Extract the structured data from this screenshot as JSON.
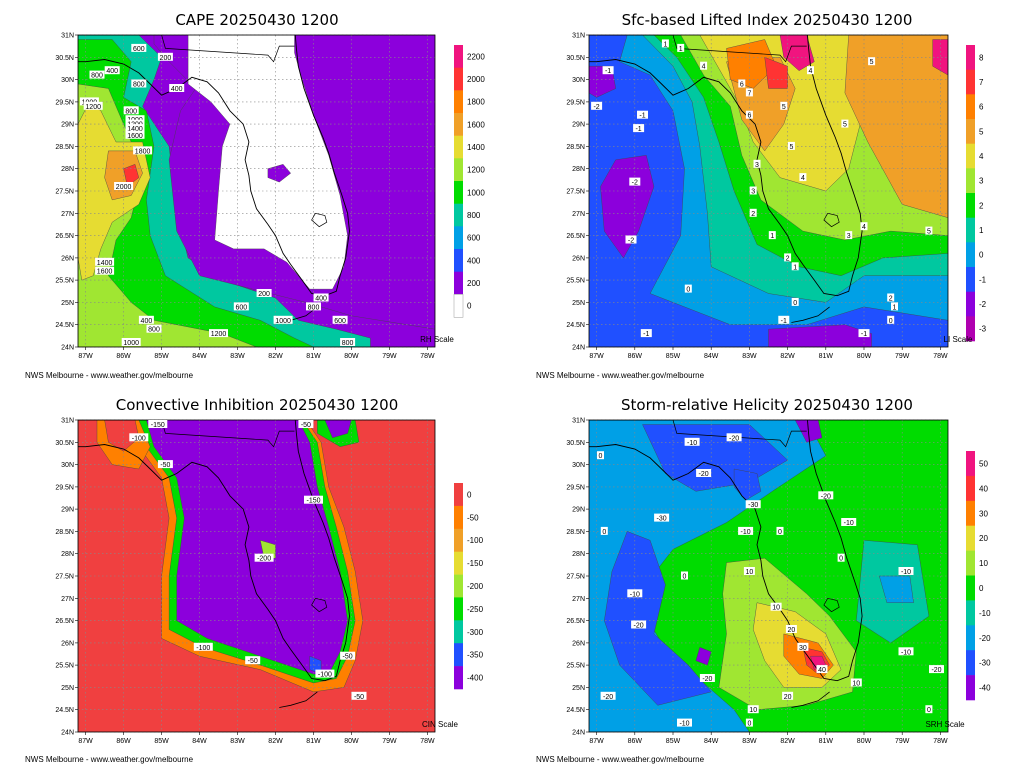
{
  "credit": "NWS Melbourne - www.weather.gov/melbourne",
  "chart_data": [
    {
      "type": "heatmap",
      "title": "CAPE 20250430 1200",
      "scale_label": "RH Scale",
      "x_ticks": [
        "87W",
        "86W",
        "85W",
        "84W",
        "83W",
        "82W",
        "81W",
        "80W",
        "79W",
        "78W"
      ],
      "y_ticks": [
        "31N",
        "30.5N",
        "30N",
        "29.5N",
        "29N",
        "28.5N",
        "28N",
        "27.5N",
        "27N",
        "26.5N",
        "26N",
        "25.5N",
        "25N",
        "24.5N",
        "24N"
      ],
      "xlim": [
        -87.2,
        -77.8
      ],
      "ylim": [
        24,
        31
      ],
      "colorbar": {
        "levels": [
          "2200",
          "2000",
          "1800",
          "1600",
          "1400",
          "1200",
          "1000",
          "800",
          "600",
          "400",
          "200",
          "0"
        ],
        "colors": [
          "#f0147f",
          "#ff3333",
          "#ff8000",
          "#f0a028",
          "#e6dc32",
          "#a0e632",
          "#00dc00",
          "#00c8a0",
          "#00a0e6",
          "#2050ff",
          "#8c00dc",
          "#ffffff"
        ]
      },
      "contour_labels": [
        {
          "text": "600",
          "lon": -85.6,
          "lat": 30.7
        },
        {
          "text": "400",
          "lon": -86.3,
          "lat": 30.2
        },
        {
          "text": "200",
          "lon": -84.9,
          "lat": 30.5
        },
        {
          "text": "800",
          "lon": -86.7,
          "lat": 30.1
        },
        {
          "text": "800",
          "lon": -85.6,
          "lat": 29.9
        },
        {
          "text": "400",
          "lon": -84.6,
          "lat": 29.8
        },
        {
          "text": "1000",
          "lon": -86.9,
          "lat": 29.5
        },
        {
          "text": "1200",
          "lon": -86.8,
          "lat": 29.4
        },
        {
          "text": "800",
          "lon": -85.8,
          "lat": 29.3
        },
        {
          "text": "1000",
          "lon": -85.7,
          "lat": 29.1
        },
        {
          "text": "1200",
          "lon": -85.7,
          "lat": 29.0
        },
        {
          "text": "1400",
          "lon": -85.7,
          "lat": 28.9
        },
        {
          "text": "1600",
          "lon": -85.7,
          "lat": 28.75
        },
        {
          "text": "1800",
          "lon": -85.5,
          "lat": 28.4
        },
        {
          "text": "2000",
          "lon": -86.0,
          "lat": 27.6
        },
        {
          "text": "1400",
          "lon": -86.5,
          "lat": 25.9
        },
        {
          "text": "1600",
          "lon": -86.5,
          "lat": 25.7
        },
        {
          "text": "200",
          "lon": -82.3,
          "lat": 25.2
        },
        {
          "text": "600",
          "lon": -82.9,
          "lat": 24.9
        },
        {
          "text": "400",
          "lon": -85.4,
          "lat": 24.6
        },
        {
          "text": "800",
          "lon": -85.2,
          "lat": 24.4
        },
        {
          "text": "1200",
          "lon": -83.5,
          "lat": 24.3
        },
        {
          "text": "1000",
          "lon": -81.8,
          "lat": 24.6
        },
        {
          "text": "1000",
          "lon": -85.8,
          "lat": 24.1
        },
        {
          "text": "800",
          "lon": -81.0,
          "lat": 24.9
        },
        {
          "text": "600",
          "lon": -80.3,
          "lat": 24.6
        },
        {
          "text": "400",
          "lon": -80.8,
          "lat": 25.1
        },
        {
          "text": "800",
          "lon": -80.1,
          "lat": 24.1
        }
      ]
    },
    {
      "type": "heatmap",
      "title": "Sfc-based Lifted Index 20250430 1200",
      "scale_label": "LI Scale",
      "x_ticks": [
        "87W",
        "86W",
        "85W",
        "84W",
        "83W",
        "82W",
        "81W",
        "80W",
        "79W",
        "78W"
      ],
      "y_ticks": [
        "31N",
        "30.5N",
        "30N",
        "29.5N",
        "29N",
        "28.5N",
        "28N",
        "27.5N",
        "27N",
        "26.5N",
        "26N",
        "25.5N",
        "25N",
        "24.5N",
        "24N"
      ],
      "xlim": [
        -87.2,
        -77.8
      ],
      "ylim": [
        24,
        31
      ],
      "colorbar": {
        "levels": [
          "8",
          "7",
          "6",
          "5",
          "4",
          "3",
          "2",
          "1",
          "0",
          "-1",
          "-2",
          "-3"
        ],
        "colors": [
          "#f0147f",
          "#ff3333",
          "#ff8000",
          "#f0a028",
          "#e6dc32",
          "#a0e632",
          "#00dc00",
          "#00c8a0",
          "#00a0e6",
          "#2050ff",
          "#8c00dc",
          "#b000b0"
        ]
      },
      "contour_labels": [
        {
          "text": "-1",
          "lon": -86.7,
          "lat": 30.2
        },
        {
          "text": "-2",
          "lon": -87.0,
          "lat": 29.4
        },
        {
          "text": "-1",
          "lon": -85.8,
          "lat": 29.2
        },
        {
          "text": "-1",
          "lon": -85.9,
          "lat": 28.9
        },
        {
          "text": "-2",
          "lon": -86.0,
          "lat": 27.7
        },
        {
          "text": "-2",
          "lon": -86.1,
          "lat": 26.4
        },
        {
          "text": "0",
          "lon": -84.6,
          "lat": 25.3
        },
        {
          "text": "-1",
          "lon": -85.7,
          "lat": 24.3
        },
        {
          "text": "1",
          "lon": -85.2,
          "lat": 30.8
        },
        {
          "text": "1",
          "lon": -84.8,
          "lat": 30.7
        },
        {
          "text": "4",
          "lon": -84.2,
          "lat": 30.3
        },
        {
          "text": "6",
          "lon": -83.2,
          "lat": 29.9
        },
        {
          "text": "7",
          "lon": -83.0,
          "lat": 29.7
        },
        {
          "text": "6",
          "lon": -83.0,
          "lat": 29.2
        },
        {
          "text": "5",
          "lon": -82.1,
          "lat": 29.4
        },
        {
          "text": "5",
          "lon": -79.8,
          "lat": 30.4
        },
        {
          "text": "5",
          "lon": -80.5,
          "lat": 29.0
        },
        {
          "text": "4",
          "lon": -81.4,
          "lat": 30.2
        },
        {
          "text": "5",
          "lon": -81.9,
          "lat": 28.5
        },
        {
          "text": "3",
          "lon": -82.8,
          "lat": 28.1
        },
        {
          "text": "4",
          "lon": -81.6,
          "lat": 27.8
        },
        {
          "text": "3",
          "lon": -82.9,
          "lat": 27.5
        },
        {
          "text": "2",
          "lon": -82.9,
          "lat": 27.0
        },
        {
          "text": "1",
          "lon": -82.4,
          "lat": 26.5
        },
        {
          "text": "2",
          "lon": -82.0,
          "lat": 26.0
        },
        {
          "text": "1",
          "lon": -81.8,
          "lat": 25.8
        },
        {
          "text": "0",
          "lon": -81.8,
          "lat": 25.0
        },
        {
          "text": "-1",
          "lon": -82.1,
          "lat": 24.6
        },
        {
          "text": "4",
          "lon": -80.0,
          "lat": 26.7
        },
        {
          "text": "3",
          "lon": -80.4,
          "lat": 26.5
        },
        {
          "text": "2",
          "lon": -79.3,
          "lat": 25.1
        },
        {
          "text": "1",
          "lon": -79.2,
          "lat": 24.9
        },
        {
          "text": "0",
          "lon": -79.3,
          "lat": 24.6
        },
        {
          "text": "-1",
          "lon": -80.0,
          "lat": 24.3
        },
        {
          "text": "5",
          "lon": -78.3,
          "lat": 26.6
        }
      ]
    },
    {
      "type": "heatmap",
      "title": "Convective Inhibition 20250430 1200",
      "scale_label": "CIN Scale",
      "x_ticks": [
        "87W",
        "86W",
        "85W",
        "84W",
        "83W",
        "82W",
        "81W",
        "80W",
        "79W",
        "78W"
      ],
      "y_ticks": [
        "31N",
        "30.5N",
        "30N",
        "29.5N",
        "29N",
        "28.5N",
        "28N",
        "27.5N",
        "27N",
        "26.5N",
        "26N",
        "25.5N",
        "25N",
        "24.5N",
        "24N"
      ],
      "xlim": [
        -87.2,
        -77.8
      ],
      "ylim": [
        24,
        31
      ],
      "colorbar": {
        "levels": [
          "0",
          "-50",
          "-100",
          "-150",
          "-200",
          "-250",
          "-300",
          "-350",
          "-400"
        ],
        "colors": [
          "#f04040",
          "#ff8000",
          "#f0a028",
          "#e6dc32",
          "#a0e632",
          "#00dc00",
          "#00c8a0",
          "#2050ff",
          "#8c00dc"
        ]
      },
      "contour_labels": [
        {
          "text": "-150",
          "lon": -85.1,
          "lat": 30.9
        },
        {
          "text": "-100",
          "lon": -85.6,
          "lat": 30.6
        },
        {
          "text": "-50",
          "lon": -84.9,
          "lat": 30.0
        },
        {
          "text": "-50",
          "lon": -81.2,
          "lat": 30.9
        },
        {
          "text": "-150",
          "lon": -81.0,
          "lat": 29.2
        },
        {
          "text": "-200",
          "lon": -82.3,
          "lat": 27.9
        },
        {
          "text": "-100",
          "lon": -83.9,
          "lat": 25.9
        },
        {
          "text": "-50",
          "lon": -82.6,
          "lat": 25.6
        },
        {
          "text": "-50",
          "lon": -80.1,
          "lat": 25.7
        },
        {
          "text": "-100",
          "lon": -80.7,
          "lat": 25.3
        },
        {
          "text": "-50",
          "lon": -79.8,
          "lat": 24.8
        }
      ]
    },
    {
      "type": "heatmap",
      "title": "Storm-relative Helicity 20250430 1200",
      "scale_label": "SRH Scale",
      "x_ticks": [
        "87W",
        "86W",
        "85W",
        "84W",
        "83W",
        "82W",
        "81W",
        "80W",
        "79W",
        "78W"
      ],
      "y_ticks": [
        "31N",
        "30.5N",
        "30N",
        "29.5N",
        "29N",
        "28.5N",
        "28N",
        "27.5N",
        "27N",
        "26.5N",
        "26N",
        "25.5N",
        "25N",
        "24.5N",
        "24N"
      ],
      "xlim": [
        -87.2,
        -77.8
      ],
      "ylim": [
        24,
        31
      ],
      "colorbar": {
        "levels": [
          "50",
          "40",
          "30",
          "20",
          "10",
          "0",
          "-10",
          "-20",
          "-30",
          "-40"
        ],
        "colors": [
          "#f0147f",
          "#ff3333",
          "#ff8000",
          "#e6dc32",
          "#a0e632",
          "#00dc00",
          "#00c8a0",
          "#00a0e6",
          "#2050ff",
          "#8c00dc"
        ]
      },
      "contour_labels": [
        {
          "text": "-10",
          "lon": -84.5,
          "lat": 30.5
        },
        {
          "text": "-20",
          "lon": -83.4,
          "lat": 30.6
        },
        {
          "text": "0",
          "lon": -86.9,
          "lat": 30.2
        },
        {
          "text": "-20",
          "lon": -84.2,
          "lat": 29.8
        },
        {
          "text": "-30",
          "lon": -82.9,
          "lat": 29.1
        },
        {
          "text": "-20",
          "lon": -81.0,
          "lat": 29.3
        },
        {
          "text": "-30",
          "lon": -85.3,
          "lat": 28.8
        },
        {
          "text": "-10",
          "lon": -83.1,
          "lat": 28.5
        },
        {
          "text": "0",
          "lon": -82.2,
          "lat": 28.5
        },
        {
          "text": "-10",
          "lon": -80.4,
          "lat": 28.7
        },
        {
          "text": "0",
          "lon": -86.8,
          "lat": 28.5
        },
        {
          "text": "0",
          "lon": -80.6,
          "lat": 27.9
        },
        {
          "text": "10",
          "lon": -83.0,
          "lat": 27.6
        },
        {
          "text": "0",
          "lon": -84.7,
          "lat": 27.5
        },
        {
          "text": "-10",
          "lon": -86.0,
          "lat": 27.1
        },
        {
          "text": "-10",
          "lon": -78.9,
          "lat": 27.6
        },
        {
          "text": "-20",
          "lon": -85.9,
          "lat": 26.4
        },
        {
          "text": "10",
          "lon": -82.3,
          "lat": 26.8
        },
        {
          "text": "20",
          "lon": -81.9,
          "lat": 26.3
        },
        {
          "text": "30",
          "lon": -81.6,
          "lat": 25.9
        },
        {
          "text": "40",
          "lon": -81.1,
          "lat": 25.4
        },
        {
          "text": "10",
          "lon": -80.2,
          "lat": 25.1
        },
        {
          "text": "20",
          "lon": -82.0,
          "lat": 24.8
        },
        {
          "text": "10",
          "lon": -82.9,
          "lat": 24.5
        },
        {
          "text": "-20",
          "lon": -86.7,
          "lat": 24.8
        },
        {
          "text": "-20",
          "lon": -84.1,
          "lat": 25.2
        },
        {
          "text": "-10",
          "lon": -84.7,
          "lat": 24.2
        },
        {
          "text": "0",
          "lon": -83.0,
          "lat": 24.2
        },
        {
          "text": "-10",
          "lon": -78.9,
          "lat": 25.8
        },
        {
          "text": "0",
          "lon": -78.3,
          "lat": 24.5
        },
        {
          "text": "-20",
          "lon": -78.1,
          "lat": 25.4
        }
      ]
    }
  ]
}
